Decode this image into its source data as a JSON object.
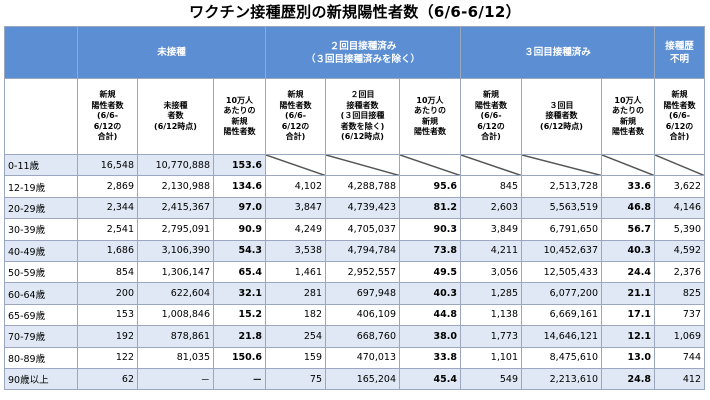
{
  "title": "ワクチン接種歴別の新規陽性者数（6/6-6/12）",
  "groups": {
    "unvaccinated": "未接種",
    "two_dose": "２回目接種済み\n（３回目接種済みを除く）",
    "three_dose": "３回目接種済み",
    "unknown": "接種歴\n不明"
  },
  "subheaders": [
    "新規\n陽性者数\n(6/6-\n6/12の\n合計)",
    "未接種\n者数\n(6/12時点)",
    "10万人\nあたりの\n新規\n陽性者数",
    "新規\n陽性者数\n(6/6-\n6/12の\n合計)",
    "２回目\n接種者数\n(３回目接種\n者数を除く)\n(6/12時点)",
    "10万人\nあたりの\n新規\n陽性者数",
    "新規\n陽性者数\n(6/6-\n6/12の\n合計)",
    "３回目\n接種者数\n(6/12時点)",
    "10万人\nあたりの\n新規\n陽性者数",
    "新規\n陽性者数\n(6/6-\n6/12の\n合計)"
  ],
  "rows": [
    {
      "age": "0-11歳",
      "c": [
        "16,548",
        "10,770,888",
        "153.6",
        "",
        "",
        "",
        "",
        "",
        "",
        ""
      ]
    },
    {
      "age": "12-19歳",
      "c": [
        "2,869",
        "2,130,988",
        "134.6",
        "4,102",
        "4,288,788",
        "95.6",
        "845",
        "2,513,728",
        "33.6",
        "3,622"
      ]
    },
    {
      "age": "20-29歳",
      "c": [
        "2,344",
        "2,415,367",
        "97.0",
        "3,847",
        "4,739,423",
        "81.2",
        "2,603",
        "5,563,519",
        "46.8",
        "4,146"
      ]
    },
    {
      "age": "30-39歳",
      "c": [
        "2,541",
        "2,795,091",
        "90.9",
        "4,249",
        "4,705,037",
        "90.3",
        "3,849",
        "6,791,650",
        "56.7",
        "5,390"
      ]
    },
    {
      "age": "40-49歳",
      "c": [
        "1,686",
        "3,106,390",
        "54.3",
        "3,538",
        "4,794,784",
        "73.8",
        "4,211",
        "10,452,637",
        "40.3",
        "4,592"
      ]
    },
    {
      "age": "50-59歳",
      "c": [
        "854",
        "1,306,147",
        "65.4",
        "1,461",
        "2,952,557",
        "49.5",
        "3,056",
        "12,505,433",
        "24.4",
        "2,376"
      ]
    },
    {
      "age": "60-64歳",
      "c": [
        "200",
        "622,604",
        "32.1",
        "281",
        "697,948",
        "40.3",
        "1,285",
        "6,077,200",
        "21.1",
        "825"
      ]
    },
    {
      "age": "65-69歳",
      "c": [
        "153",
        "1,008,846",
        "15.2",
        "182",
        "406,109",
        "44.8",
        "1,138",
        "6,669,161",
        "17.1",
        "737"
      ]
    },
    {
      "age": "70-79歳",
      "c": [
        "192",
        "878,861",
        "21.8",
        "254",
        "668,760",
        "38.0",
        "1,773",
        "14,646,121",
        "12.1",
        "1,069"
      ]
    },
    {
      "age": "80-89歳",
      "c": [
        "122",
        "81,035",
        "150.6",
        "159",
        "470,013",
        "33.8",
        "1,101",
        "8,475,610",
        "13.0",
        "744"
      ]
    },
    {
      "age": "90歳以上",
      "c": [
        "62",
        "－",
        "－",
        "75",
        "165,204",
        "45.4",
        "549",
        "2,213,610",
        "24.8",
        "412"
      ]
    }
  ]
}
